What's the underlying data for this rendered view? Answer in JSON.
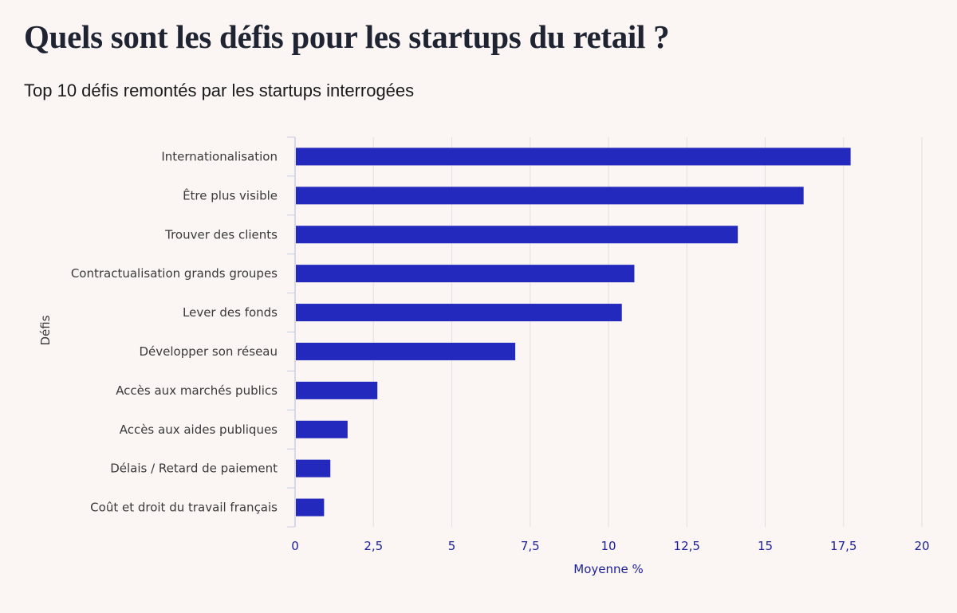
{
  "header": {
    "title": "Quels sont les défis pour les startups du retail ?",
    "subtitle": "Top 10 défis remontés par les startups interrogées"
  },
  "chart_data": {
    "type": "bar",
    "orientation": "horizontal",
    "categories": [
      "Internationalisation",
      "Être plus visible",
      "Trouver des clients",
      "Contractualisation grands groupes",
      "Lever des fonds",
      "Développer son réseau",
      "Accès aux marchés publics",
      "Accès aux aides publiques",
      "Délais / Retard de paiement",
      "Coût et droit du travail français"
    ],
    "values": [
      17.7,
      16.2,
      14.1,
      10.8,
      10.4,
      7.0,
      2.6,
      1.65,
      1.1,
      0.9
    ],
    "xlabel": "Moyenne %",
    "ylabel": "Défis",
    "xlim": [
      0,
      20
    ],
    "xticks": [
      0,
      2.5,
      5,
      7.5,
      10,
      12.5,
      15,
      17.5,
      20
    ],
    "xtick_labels": [
      "0",
      "2,5",
      "5",
      "7,5",
      "10",
      "12,5",
      "15",
      "17,5",
      "20"
    ],
    "grid": "vertical",
    "colors": {
      "bar": "#2329bd",
      "grid": "#e3dfe2",
      "axis": "#c9cde6",
      "tick_text": "#1b1f9a"
    }
  }
}
